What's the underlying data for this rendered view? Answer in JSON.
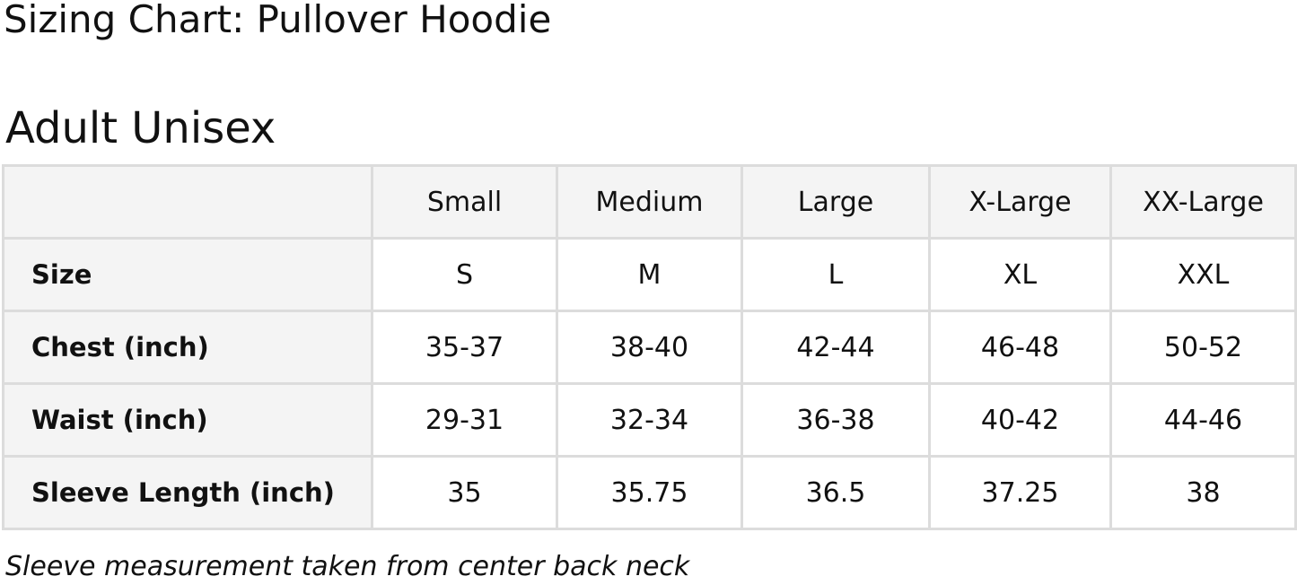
{
  "title": "Sizing Chart: Pullover Hoodie",
  "subtitle": "Adult Unisex",
  "table": {
    "columns": [
      "",
      "Small",
      "Medium",
      "Large",
      "X-Large",
      "XX-Large"
    ],
    "rows": [
      {
        "label": "Size",
        "values": [
          "S",
          "M",
          "L",
          "XL",
          "XXL"
        ]
      },
      {
        "label": "Chest (inch)",
        "values": [
          "35-37",
          "38-40",
          "42-44",
          "46-48",
          "50-52"
        ]
      },
      {
        "label": "Waist (inch)",
        "values": [
          "29-31",
          "32-34",
          "36-38",
          "40-42",
          "44-46"
        ]
      },
      {
        "label": "Sleeve Length (inch)",
        "values": [
          "35",
          "35.75",
          "36.5",
          "37.25",
          "38"
        ]
      }
    ]
  },
  "note": "Sleeve measurement taken from center back neck"
}
